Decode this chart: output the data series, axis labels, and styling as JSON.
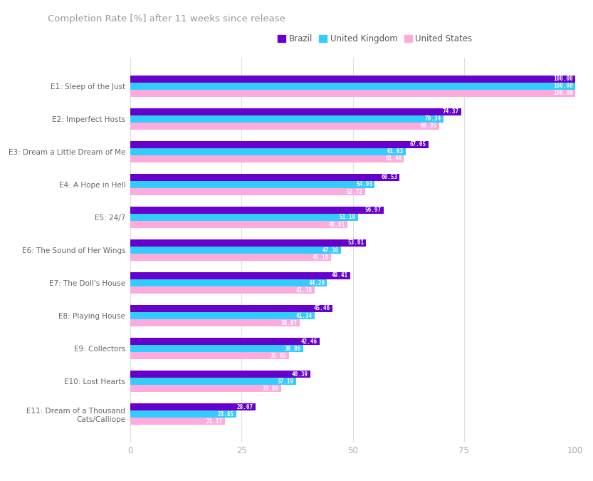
{
  "title": "Completion Rate [%] after 11 weeks since release",
  "episodes": [
    "E1: Sleep of the Just",
    "E2: Imperfect Hosts",
    "E3: Dream a Little Dream of Me",
    "E4: A Hope in Hell",
    "E5: 24/7",
    "E6: The Sound of Her Wings",
    "E7: The Doll's House",
    "E8: Playing House",
    "E9: Collectors",
    "E10: Lost Hearts",
    "E11: Dream of a Thousand\nCats/Calliope"
  ],
  "brazil": [
    100.0,
    74.37,
    67.05,
    60.53,
    56.97,
    53.01,
    49.41,
    45.46,
    42.46,
    40.39,
    28.07
  ],
  "uk": [
    100.0,
    70.34,
    61.83,
    54.93,
    51.1,
    47.38,
    44.2,
    41.34,
    38.86,
    37.19,
    23.85
  ],
  "us": [
    100.0,
    69.35,
    61.48,
    52.72,
    48.81,
    45.1,
    41.38,
    38.07,
    35.65,
    33.86,
    21.17
  ],
  "brazil_color": "#6600cc",
  "uk_color": "#33ccff",
  "us_color": "#ffaadd",
  "legend_labels": [
    "Brazil",
    "United Kingdom",
    "United States"
  ],
  "xlim": [
    0,
    100
  ],
  "xticks": [
    0,
    25,
    50,
    75,
    100
  ],
  "bar_height": 0.22,
  "label_fontsize": 7.5,
  "title_fontsize": 9.5,
  "value_fontsize": 5.5,
  "background_color": "#ffffff",
  "grid_color": "#e0e0e0"
}
